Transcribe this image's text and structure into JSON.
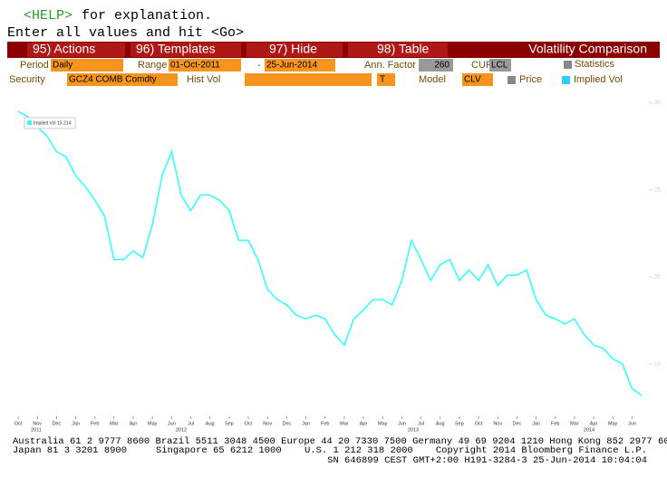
{
  "header": {
    "help_key": "<HELP>",
    "help_text": "for explanation.",
    "prompt": "Enter all values and hit <Go>"
  },
  "toolbar": {
    "buttons": [
      "95) Actions",
      "96) Templates",
      "97) Hide",
      "98) Table"
    ],
    "title": "Volatility Comparison"
  },
  "form": {
    "period_label": "Period",
    "period": "Daily",
    "range_label": "Range",
    "range_start": "01-Oct-2011",
    "range_sep": "-",
    "range_end": "25-Jun-2014",
    "ann_factor_label": "Ann. Factor",
    "ann_factor": "260",
    "cur_label": "CUR",
    "cur": "LCL",
    "statistics": "Statistics",
    "security_label": "Security",
    "security": "GCZ4 COMB Comdty",
    "hist_vol_label": "Hist Vol",
    "t": "T",
    "model_label": "Model",
    "model": "CLV",
    "price": "Price",
    "implied_vol": "Implied Vol"
  },
  "chart_data": {
    "type": "line",
    "categories": [
      "Oct",
      null,
      "Nov",
      null,
      "Dec",
      null,
      "Jan",
      null,
      "Feb",
      null,
      "Mar",
      null,
      "Apr",
      null,
      "May",
      null,
      "Jun",
      null,
      "Jul",
      null,
      "Aug",
      null,
      "Sep",
      null,
      "Oct",
      null,
      "Nov",
      null,
      "Dec",
      null,
      "Jan",
      null,
      "Feb",
      null,
      "Mar",
      null,
      "Apr",
      null,
      "May",
      null,
      "Jun",
      null,
      "Jul",
      null,
      "Aug",
      null,
      "Sep",
      null,
      "Oct",
      null,
      "Nov",
      null,
      "Dec",
      null,
      "Jan",
      null,
      "Feb",
      null,
      "Mar",
      null,
      "Apr",
      null,
      "May",
      null,
      "Jun",
      null
    ],
    "year_labels": [
      "2011",
      "2012",
      "2013",
      "2014"
    ],
    "series": [
      {
        "name": "Implied Vol",
        "last": "13.214",
        "color": "#33ffff",
        "values": [
          29.5,
          29.2,
          28.6,
          28.1,
          27.2,
          26.9,
          25.8,
          25.2,
          24.4,
          23.5,
          21.0,
          21.0,
          21.5,
          21.1,
          23.0,
          25.8,
          27.2,
          24.7,
          23.8,
          24.7,
          24.7,
          24.4,
          23.8,
          22.1,
          22.1,
          21.0,
          19.3,
          18.7,
          18.4,
          17.8,
          17.6,
          17.8,
          17.6,
          16.7,
          16.1,
          17.6,
          18.1,
          18.7,
          18.7,
          18.4,
          19.8,
          22.1,
          21.0,
          19.8,
          20.7,
          21.0,
          19.8,
          20.4,
          19.8,
          20.7,
          19.5,
          20.1,
          20.1,
          20.4,
          18.7,
          17.8,
          17.6,
          17.3,
          17.6,
          16.7,
          16.1,
          15.9,
          15.3,
          15.0,
          13.6,
          13.2
        ]
      }
    ],
    "ylim": [
      12,
      30.7
    ],
    "yticks": [
      15,
      20,
      25,
      30
    ],
    "grid": false
  },
  "footer": {
    "line1": "Australia 61 2 9777 8600 Brazil 5511 3048 4500 Europe 44 20 7330 7500 Germany 49 69 9204 1210 Hong Kong 852 2977 6000",
    "line2": [
      "Japan 81 3 3201 8900",
      "Singapore 65 6212 1000",
      "U.S. 1 212 318 2000",
      "Copyright 2014 Bloomberg Finance L.P."
    ],
    "line3": "SN 646899 CEST GMT+2:00 H191-3284-3 25-Jun-2014 10:04:04"
  }
}
